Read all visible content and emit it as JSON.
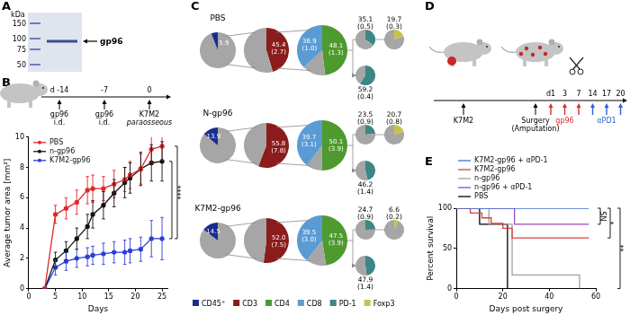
{
  "chart_data": [
    {
      "type": "line",
      "x_label": "Days",
      "y_label": "Average tumor area [mm²]",
      "x": [
        3,
        5,
        7,
        9,
        11,
        12,
        14,
        16,
        18,
        19,
        21,
        23,
        25
      ],
      "xlim": [
        0,
        26
      ],
      "xticks": [
        0,
        5,
        10,
        15,
        20,
        25
      ],
      "ylim": [
        0,
        10
      ],
      "yticks": [
        0,
        2,
        4,
        6,
        8,
        10
      ],
      "grid": false,
      "legend": "top-left",
      "marker": "circle",
      "series": [
        {
          "name": "PBS",
          "color": "#e3262a",
          "values": [
            0,
            4.9,
            5.3,
            5.7,
            6.5,
            6.6,
            6.6,
            6.9,
            7.2,
            7.5,
            7.9,
            9.2,
            9.4
          ],
          "errors": [
            0,
            0.6,
            0.7,
            0.8,
            0.9,
            0.9,
            0.8,
            0.9,
            0.8,
            0.9,
            1.0,
            0.9,
            0.9
          ]
        },
        {
          "name": "n-gp96",
          "color": "#111111",
          "values": [
            0,
            1.9,
            2.5,
            3.3,
            4.1,
            4.9,
            5.5,
            6.3,
            7.0,
            7.3,
            7.9,
            8.3,
            8.4
          ],
          "errors": [
            0,
            0.5,
            0.6,
            0.7,
            0.8,
            0.9,
            0.9,
            0.9,
            1.0,
            1.0,
            1.1,
            1.2,
            1.3
          ]
        },
        {
          "name": "K7M2-gp96",
          "color": "#2b3fd4",
          "values": [
            0,
            1.4,
            1.8,
            2.0,
            2.1,
            2.2,
            2.3,
            2.4,
            2.4,
            2.5,
            2.6,
            3.3,
            3.3
          ],
          "errors": [
            0,
            0.5,
            0.6,
            0.6,
            0.6,
            0.6,
            0.7,
            0.7,
            0.8,
            0.8,
            0.8,
            1.2,
            1.4
          ]
        }
      ],
      "annotations": [
        "****"
      ]
    },
    {
      "type": "line",
      "x_label": "Days post surgery",
      "y_label": "Percent survival",
      "xlim": [
        0,
        60
      ],
      "xticks": [
        0,
        20,
        40,
        60
      ],
      "ylim": [
        0,
        100
      ],
      "yticks": [
        0,
        50,
        100
      ],
      "grid": false,
      "legend": "top",
      "line_style": "step",
      "series": [
        {
          "name": "K7M2-gp96 + αPD-1",
          "color": "#3d6fd6",
          "x": [
            0,
            57
          ],
          "values": [
            100,
            100
          ]
        },
        {
          "name": "K7M2-gp96",
          "color": "#d9413a",
          "x": [
            0,
            6,
            11,
            15,
            20,
            24,
            57
          ],
          "values": [
            100,
            94,
            88,
            81,
            75,
            63,
            63
          ]
        },
        {
          "name": "n-gp96",
          "color": "#a0a0a0",
          "x": [
            0,
            14,
            24,
            53
          ],
          "values": [
            100,
            80,
            17,
            0
          ]
        },
        {
          "name": "n-gp96 + αPD-1",
          "color": "#9b45c9",
          "x": [
            0,
            25,
            57
          ],
          "values": [
            100,
            80,
            80
          ]
        },
        {
          "name": "PBS",
          "color": "#000000",
          "x": [
            0,
            10,
            22
          ],
          "values": [
            100,
            80,
            0
          ]
        }
      ],
      "annotations": [
        "NS",
        "*",
        "**"
      ]
    }
  ],
  "panels": {
    "A": {
      "letter": "A",
      "unit": "kDa",
      "markers": [
        150,
        100,
        75,
        50
      ],
      "band_label": "gp96"
    },
    "B": {
      "letter": "B",
      "timeline": [
        {
          "label": "d -14",
          "event": [
            "gp96",
            "i.d."
          ]
        },
        {
          "label": "-7",
          "event": [
            "gp96",
            "i.d."
          ]
        },
        {
          "label": "0",
          "event": [
            "K7M2",
            "paraosseous"
          ]
        }
      ]
    },
    "C": {
      "letter": "C",
      "rows": [
        {
          "title": "PBS",
          "pies": [
            {
              "type": "pie",
              "categories": [
                null,
                "CD45⁺"
              ],
              "values": [
                94.1,
                5.9
              ],
              "colors": [
                "#a6a6a6",
                "#1a2d8f"
              ],
              "value_labels": [
                null,
                "5.9"
              ]
            },
            {
              "type": "pie",
              "categories": [
                "CD3",
                null
              ],
              "values": [
                45.4,
                54.6
              ],
              "colors": [
                "#8b1c1c",
                "#a6a6a6"
              ],
              "value_labels": [
                "45.4 (2.7)",
                null
              ]
            },
            {
              "type": "pie",
              "categories": [
                "CD4",
                null,
                "CD8"
              ],
              "values": [
                48.1,
                15.0,
                36.9
              ],
              "colors": [
                "#4e9a2e",
                "#a6a6a6",
                "#5b9bd5"
              ],
              "value_labels": [
                "48.1 (1.3)",
                null,
                "36.9 (1.0)"
              ]
            },
            {
              "type": "pie",
              "categories": [
                "PD-1",
                null
              ],
              "values": [
                35.1,
                64.9
              ],
              "colors": [
                "#3b8686",
                "#a6a6a6"
              ],
              "value_labels": [
                "35.1 (0.5)",
                null
              ]
            },
            {
              "type": "pie",
              "categories": [
                "Foxp3",
                null
              ],
              "values": [
                19.7,
                80.3
              ],
              "colors": [
                "#c9c24a",
                "#a6a6a6"
              ],
              "value_labels": [
                "19.7 (0.3)",
                null
              ]
            },
            {
              "type": "pie",
              "categories": [
                "PD-1",
                null
              ],
              "values": [
                59.2,
                40.8
              ],
              "colors": [
                "#3b8686",
                "#a6a6a6"
              ],
              "value_labels": [
                "59.2 (0.4)",
                null
              ]
            }
          ]
        },
        {
          "title": "N-gp96",
          "pies": [
            {
              "type": "pie",
              "categories": [
                null,
                "CD45⁺"
              ],
              "values": [
                86.1,
                13.9
              ],
              "colors": [
                "#a6a6a6",
                "#1a2d8f"
              ],
              "value_labels": [
                null,
                "13.9"
              ]
            },
            {
              "type": "pie",
              "categories": [
                "CD3",
                null
              ],
              "values": [
                55.8,
                44.2
              ],
              "colors": [
                "#8b1c1c",
                "#a6a6a6"
              ],
              "value_labels": [
                "55.8 (7.8)",
                null
              ]
            },
            {
              "type": "pie",
              "categories": [
                "CD4",
                null,
                "CD8"
              ],
              "values": [
                50.1,
                10.2,
                39.7
              ],
              "colors": [
                "#4e9a2e",
                "#a6a6a6",
                "#5b9bd5"
              ],
              "value_labels": [
                "50.1 (3.9)",
                null,
                "39.7 (3.1)"
              ]
            },
            {
              "type": "pie",
              "categories": [
                "PD-1",
                null
              ],
              "values": [
                23.5,
                76.5
              ],
              "colors": [
                "#3b8686",
                "#a6a6a6"
              ],
              "value_labels": [
                "23.5 (0.9)",
                null
              ]
            },
            {
              "type": "pie",
              "categories": [
                "Foxp3",
                null
              ],
              "values": [
                20.7,
                79.3
              ],
              "colors": [
                "#c9c24a",
                "#a6a6a6"
              ],
              "value_labels": [
                "20.7 (0.8)",
                null
              ]
            },
            {
              "type": "pie",
              "categories": [
                "PD-1",
                null
              ],
              "values": [
                46.2,
                53.8
              ],
              "colors": [
                "#3b8686",
                "#a6a6a6"
              ],
              "value_labels": [
                "46.2 (1.4)",
                null
              ]
            }
          ]
        },
        {
          "title": "K7M2-gp96",
          "pies": [
            {
              "type": "pie",
              "categories": [
                null,
                "CD45⁺"
              ],
              "values": [
                85.5,
                14.5
              ],
              "colors": [
                "#a6a6a6",
                "#1a2d8f"
              ],
              "value_labels": [
                null,
                "14.5"
              ]
            },
            {
              "type": "pie",
              "categories": [
                "CD3",
                null
              ],
              "values": [
                52.0,
                48.0
              ],
              "colors": [
                "#8b1c1c",
                "#a6a6a6"
              ],
              "value_labels": [
                "52.0 (7.5)",
                null
              ]
            },
            {
              "type": "pie",
              "categories": [
                "CD4",
                null,
                "CD8"
              ],
              "values": [
                47.5,
                13.0,
                39.5
              ],
              "colors": [
                "#4e9a2e",
                "#a6a6a6",
                "#5b9bd5"
              ],
              "value_labels": [
                "47.5 (3.9)",
                null,
                "39.5 (3.0)"
              ]
            },
            {
              "type": "pie",
              "categories": [
                "PD-1",
                null
              ],
              "values": [
                24.7,
                75.3
              ],
              "colors": [
                "#3b8686",
                "#a6a6a6"
              ],
              "value_labels": [
                "24.7 (0.9)",
                null
              ]
            },
            {
              "type": "pie",
              "categories": [
                "Foxp3",
                null
              ],
              "values": [
                6.6,
                93.4
              ],
              "colors": [
                "#c9c24a",
                "#a6a6a6"
              ],
              "value_labels": [
                "6.6 (0.2)",
                null
              ]
            },
            {
              "type": "pie",
              "categories": [
                "PD-1",
                null
              ],
              "values": [
                47.9,
                52.1
              ],
              "colors": [
                "#3b8686",
                "#a6a6a6"
              ],
              "value_labels": [
                "47.9 (1.4)",
                null
              ]
            }
          ]
        }
      ],
      "legend": [
        {
          "name": "CD45⁺",
          "color": "#1a2d8f"
        },
        {
          "name": "CD3",
          "color": "#8b1c1c"
        },
        {
          "name": "CD4",
          "color": "#4e9a2e"
        },
        {
          "name": "CD8",
          "color": "#5b9bd5"
        },
        {
          "name": "PD-1",
          "color": "#3b8686"
        },
        {
          "name": "Foxp3",
          "color": "#c9c24a"
        }
      ]
    },
    "D": {
      "letter": "D",
      "events": [
        {
          "label": [
            "K7M2"
          ]
        },
        {
          "label": [
            "Surgery",
            "(Amputation)"
          ]
        }
      ],
      "days": [
        "d1",
        "3",
        "7",
        "14",
        "17",
        "20"
      ],
      "treatments": [
        {
          "name": "gp96",
          "color": "#d32f2f",
          "days": [
            "d1",
            "3",
            "7"
          ]
        },
        {
          "name": "αPD1",
          "color": "#2f5fd3",
          "days": [
            "14",
            "17",
            "20"
          ]
        }
      ]
    },
    "E": {
      "letter": "E"
    }
  }
}
